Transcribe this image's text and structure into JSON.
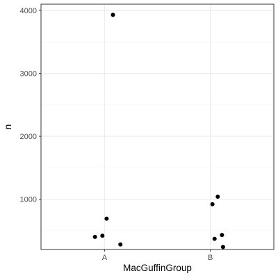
{
  "chart_data": {
    "type": "scatter",
    "xlabel": "MacGuffinGroup",
    "ylabel": "n",
    "categories": [
      "A",
      "B"
    ],
    "ylim": [
      200,
      4100
    ],
    "yticks": [
      1000,
      2000,
      3000,
      4000
    ],
    "grid": true,
    "points": [
      {
        "category": "A",
        "jitter": 0.08,
        "y": 3930
      },
      {
        "category": "A",
        "jitter": 0.02,
        "y": 690
      },
      {
        "category": "A",
        "jitter": -0.02,
        "y": 420
      },
      {
        "category": "A",
        "jitter": -0.09,
        "y": 400
      },
      {
        "category": "A",
        "jitter": 0.15,
        "y": 280
      },
      {
        "category": "B",
        "jitter": 0.07,
        "y": 1040
      },
      {
        "category": "B",
        "jitter": 0.02,
        "y": 920
      },
      {
        "category": "B",
        "jitter": 0.11,
        "y": 430
      },
      {
        "category": "B",
        "jitter": 0.04,
        "y": 370
      },
      {
        "category": "B",
        "jitter": 0.12,
        "y": 240
      }
    ],
    "colors": {
      "point": "#000000",
      "panel_border": "#333333",
      "grid_major": "#ebebeb",
      "grid_minor": "#f5f5f5",
      "tick_text": "#4d4d4d"
    }
  }
}
